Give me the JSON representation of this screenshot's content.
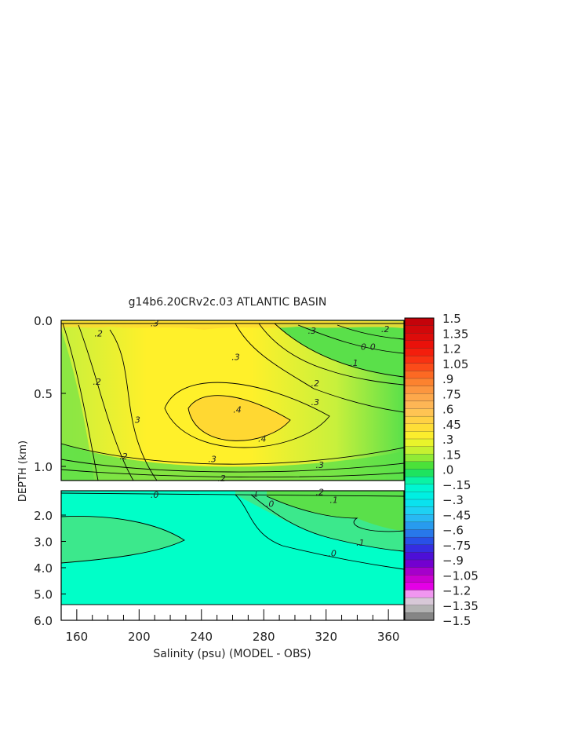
{
  "chart_data": {
    "type": "heatmap",
    "title": "g14b6.20CRv2c.03 ATLANTIC BASIN",
    "xlabel": "Salinity (psu) (MODEL - OBS)",
    "ylabel": "DEPTH (km)",
    "x_ticks": [
      "160",
      "200",
      "240",
      "280",
      "320",
      "360"
    ],
    "x_range": [
      150,
      370
    ],
    "upper_panel": {
      "y_range": [
        0.0,
        1.1
      ],
      "y_ticks": [
        "0.0",
        "0.5",
        "1.0"
      ],
      "contour_labels": [
        {
          "text": ".2",
          "x": 174,
          "y": 0.09
        },
        {
          "text": ".3",
          "x": 210,
          "y": 0.02
        },
        {
          "text": ".3",
          "x": 311,
          "y": 0.07
        },
        {
          "text": ".2",
          "x": 358,
          "y": 0.06
        },
        {
          "text": ".3",
          "x": 262,
          "y": 0.25
        },
        {
          "text": ".1",
          "x": 338,
          "y": 0.29
        },
        {
          "text": "0",
          "x": 344,
          "y": 0.18
        },
        {
          "text": "0",
          "x": 350,
          "y": 0.18
        },
        {
          "text": ".2",
          "x": 173,
          "y": 0.42
        },
        {
          "text": ".2",
          "x": 313,
          "y": 0.43
        },
        {
          "text": ".3",
          "x": 313,
          "y": 0.56
        },
        {
          "text": ".4",
          "x": 263,
          "y": 0.61
        },
        {
          "text": ".4",
          "x": 279,
          "y": 0.81
        },
        {
          "text": "3",
          "x": 199,
          "y": 0.68
        },
        {
          "text": ".2",
          "x": 190,
          "y": 0.93
        },
        {
          "text": ".3",
          "x": 247,
          "y": 0.95
        },
        {
          "text": ".3",
          "x": 316,
          "y": 0.99
        },
        {
          "text": ".2",
          "x": 253,
          "y": 1.08
        }
      ]
    },
    "lower_panel": {
      "y_range": [
        1.1,
        6.0
      ],
      "y_ticks": [
        "2.0",
        "3.0",
        "4.0",
        "5.0",
        "6.0"
      ],
      "contour_labels": [
        {
          "text": ".0",
          "x": 210,
          "y": 1.25
        },
        {
          "text": "1",
          "x": 275,
          "y": 1.2
        },
        {
          "text": ".0",
          "x": 284,
          "y": 1.6
        },
        {
          "text": ".1",
          "x": 325,
          "y": 1.45
        },
        {
          "text": ".2",
          "x": 316,
          "y": 1.15
        },
        {
          "text": ".1",
          "x": 342,
          "y": 3.05
        },
        {
          "text": ".0",
          "x": 324,
          "y": 3.45
        }
      ]
    },
    "colorbar": {
      "labels": [
        "1.5",
        "1.35",
        "1.2",
        "1.05",
        ".9",
        ".75",
        ".6",
        ".45",
        ".3",
        ".15",
        ".0",
        "−.15",
        "−.3",
        "−.45",
        "−.6",
        "−.75",
        "−.9",
        "−1.05",
        "−1.2",
        "−1.35",
        "−1.5"
      ]
    },
    "colors": {
      "cyan": "#00ffc8",
      "green": "#5ae04a",
      "yellow_green": "#c8f03c",
      "yellow": "#fff02a",
      "gold": "#ffd832"
    }
  }
}
